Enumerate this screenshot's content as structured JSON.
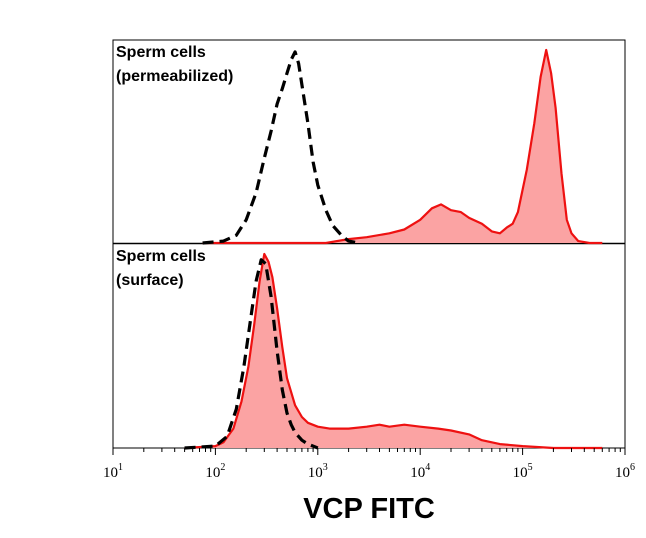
{
  "chart_data": {
    "type": "area",
    "x_scale": "log",
    "xlim": [
      10,
      1000000
    ],
    "xlabel": "VCP FITC",
    "x_ticks": [
      {
        "base": "10",
        "exp": "1",
        "value": 10
      },
      {
        "base": "10",
        "exp": "2",
        "value": 100
      },
      {
        "base": "10",
        "exp": "3",
        "value": 1000
      },
      {
        "base": "10",
        "exp": "4",
        "value": 10000
      },
      {
        "base": "10",
        "exp": "5",
        "value": 100000
      },
      {
        "base": "10",
        "exp": "6",
        "value": 1000000
      }
    ],
    "colors": {
      "stain_line": "#ee1111",
      "stain_fill": "#fba3a3",
      "control_line": "#000000"
    },
    "panels": [
      {
        "label_lines": [
          "Sperm cells",
          "(permeabilized)"
        ],
        "series": [
          {
            "style": "dashed-black",
            "x": [
              75,
              120,
              160,
              200,
              250,
              300,
              350,
              400,
              450,
              500,
              550,
              600,
              650,
              700,
              800,
              900,
              1000,
              1200,
              1400,
              1700,
              2000,
              2500
            ],
            "y": [
              0,
              0.01,
              0.04,
              0.12,
              0.26,
              0.44,
              0.58,
              0.72,
              0.8,
              0.88,
              0.95,
              0.99,
              0.93,
              0.82,
              0.62,
              0.42,
              0.3,
              0.17,
              0.09,
              0.04,
              0.01,
              0
            ]
          },
          {
            "style": "filled-red",
            "x": [
              75,
              1200,
              2000,
              3000,
              5000,
              7000,
              10000,
              13000,
              16000,
              20000,
              25000,
              30000,
              40000,
              50000,
              60000,
              70000,
              80000,
              90000,
              110000,
              130000,
              150000,
              170000,
              190000,
              210000,
              240000,
              270000,
              300000,
              350000,
              450000,
              600000
            ],
            "y": [
              0,
              0,
              0.02,
              0.03,
              0.05,
              0.07,
              0.12,
              0.18,
              0.2,
              0.17,
              0.16,
              0.13,
              0.1,
              0.06,
              0.05,
              0.08,
              0.1,
              0.16,
              0.38,
              0.62,
              0.86,
              1.0,
              0.88,
              0.7,
              0.36,
              0.12,
              0.05,
              0.01,
              0,
              0
            ]
          }
        ]
      },
      {
        "label_lines": [
          "Sperm cells",
          "(surface)"
        ],
        "series": [
          {
            "style": "dashed-black",
            "x": [
              50,
              100,
              130,
              160,
              190,
              220,
              250,
              280,
              310,
              350,
              400,
              450,
              500,
              550,
              600,
              700,
              800,
              1000
            ],
            "y": [
              0,
              0.01,
              0.06,
              0.2,
              0.42,
              0.66,
              0.86,
              0.97,
              0.95,
              0.78,
              0.5,
              0.3,
              0.18,
              0.12,
              0.08,
              0.04,
              0.02,
              0
            ]
          },
          {
            "style": "filled-red",
            "x": [
              50,
              100,
              120,
              150,
              180,
              210,
              240,
              270,
              300,
              330,
              360,
              400,
              450,
              500,
              600,
              700,
              800,
              1000,
              1300,
              2000,
              3000,
              4000,
              5000,
              7000,
              10000,
              15000,
              20000,
              30000,
              40000,
              60000,
              100000,
              200000,
              400000,
              600000
            ],
            "y": [
              0,
              0.01,
              0.03,
              0.1,
              0.24,
              0.42,
              0.64,
              0.86,
              1.0,
              0.96,
              0.88,
              0.72,
              0.52,
              0.36,
              0.22,
              0.16,
              0.13,
              0.11,
              0.1,
              0.1,
              0.11,
              0.12,
              0.11,
              0.12,
              0.11,
              0.1,
              0.09,
              0.07,
              0.04,
              0.02,
              0.01,
              0,
              0,
              0
            ]
          }
        ]
      }
    ]
  }
}
